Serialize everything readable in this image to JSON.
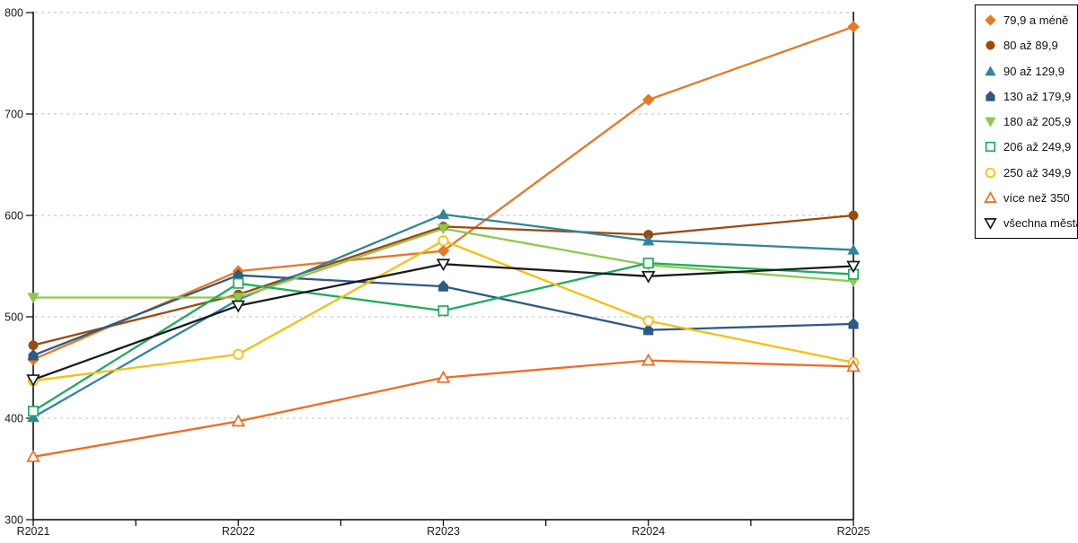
{
  "chart_data": {
    "type": "line",
    "title": "",
    "categories": [
      "R2021",
      "R2022",
      "R2023",
      "R2024",
      "R2025"
    ],
    "series": [
      {
        "name": "79,9 a méně",
        "color": "#E87722",
        "marker": "diamond",
        "fill": "filled",
        "values": [
          458,
          545,
          565,
          714,
          786
        ]
      },
      {
        "name": "80 až 89,9",
        "color": "#9C4A0E",
        "marker": "circle",
        "fill": "filled",
        "values": [
          472,
          522,
          589,
          581,
          600
        ]
      },
      {
        "name": "90 až 129,9",
        "color": "#31859C",
        "marker": "triangle-up",
        "fill": "filled",
        "values": [
          401,
          517,
          601,
          575,
          566
        ]
      },
      {
        "name": "130 až 179,9",
        "color": "#2D5A87",
        "marker": "pentagon",
        "fill": "filled",
        "values": [
          462,
          541,
          530,
          487,
          493
        ]
      },
      {
        "name": "180 až 205,9",
        "color": "#8FC94C",
        "marker": "triangle-down",
        "fill": "filled",
        "values": [
          519,
          519,
          587,
          551,
          535
        ]
      },
      {
        "name": "206 až 249,9",
        "color": "#1CAD5E",
        "marker": "square",
        "fill": "open",
        "values": [
          407,
          533,
          506,
          553,
          542
        ]
      },
      {
        "name": "250 až 349,9",
        "color": "#FBBE0F",
        "marker": "circle",
        "fill": "open",
        "values": [
          437,
          463,
          575,
          496,
          455
        ]
      },
      {
        "name": "více než 350",
        "color": "#F26B21",
        "marker": "triangle-up",
        "fill": "open",
        "values": [
          362,
          397,
          440,
          457,
          451
        ]
      },
      {
        "name": "všechna města",
        "color": "#1A1A1A",
        "marker": "triangle-down",
        "fill": "open",
        "values": [
          438,
          511,
          552,
          540,
          550
        ]
      }
    ],
    "ylim": [
      300,
      800
    ],
    "yticks": [
      300,
      400,
      500,
      600,
      700,
      800
    ],
    "grid": "horizontal-dashed",
    "legend_position": "right"
  },
  "colors": {
    "grid": "#BFBFBF",
    "axis": "#000000",
    "background": "#FFFFFF"
  }
}
